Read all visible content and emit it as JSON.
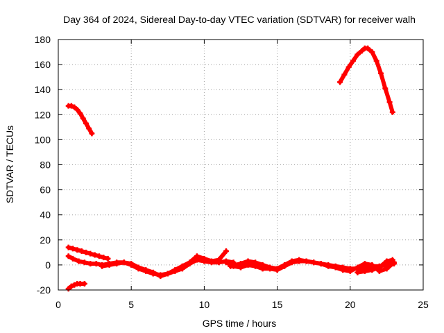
{
  "chart_data": {
    "type": "scatter",
    "title": "Day 364 of 2024, Sidereal Day-to-day VTEC variation (SDTVAR) for receiver walh",
    "xlabel": "GPS time / hours",
    "ylabel": "SDTVAR / TECUs",
    "xlim": [
      0,
      25
    ],
    "ylim": [
      -20,
      180
    ],
    "xticks": [
      "0",
      "5",
      "10",
      "15",
      "20",
      "25"
    ],
    "yticks": [
      "-20",
      "0",
      "20",
      "40",
      "60",
      "80",
      "100",
      "120",
      "140",
      "160",
      "180"
    ],
    "grid": true,
    "marker": "plus",
    "series": [
      {
        "name": "early-high",
        "color": "#ff0000",
        "x": [
          0.7,
          0.9,
          1.1,
          1.3,
          1.5,
          1.7,
          1.9,
          2.1,
          2.3
        ],
        "y": [
          127,
          127,
          126,
          124,
          121,
          117,
          113,
          109,
          105
        ]
      },
      {
        "name": "late-high",
        "color": "#ff0000",
        "x": [
          19.3,
          19.6,
          19.9,
          20.2,
          20.5,
          20.8,
          21.0,
          21.2,
          21.5,
          21.8,
          22.1,
          22.4,
          22.7,
          22.9
        ],
        "y": [
          146,
          152,
          158,
          163,
          168,
          171,
          173,
          173,
          170,
          163,
          153,
          141,
          130,
          122
        ]
      },
      {
        "name": "arc-upper-start",
        "color": "#ff0000",
        "x": [
          0.7,
          1.0,
          1.3,
          1.6,
          1.9,
          2.2,
          2.5,
          2.8,
          3.1,
          3.4
        ],
        "y": [
          14,
          13,
          12,
          11,
          10,
          9,
          8,
          7,
          6,
          5
        ]
      },
      {
        "name": "arc-lower-start",
        "color": "#ff0000",
        "x": [
          0.7,
          0.9,
          1.1,
          1.3,
          1.5,
          1.8
        ],
        "y": [
          -19,
          -17,
          -16,
          -15,
          -15,
          -15
        ]
      },
      {
        "name": "main-band-a",
        "color": "#ff0000",
        "x": [
          0.7,
          1.0,
          1.4,
          1.8,
          2.2,
          2.6,
          3.0,
          3.5,
          4.0,
          4.5,
          5.0,
          5.5,
          6.0,
          6.5,
          7.0,
          7.5,
          8.0,
          8.5,
          9.0,
          9.5,
          10.0,
          10.5,
          11.0,
          11.5,
          12.0
        ],
        "y": [
          7,
          5,
          3,
          2,
          1,
          1,
          0,
          1,
          2,
          2,
          0,
          -3,
          -5,
          -7,
          -8,
          -7,
          -5,
          -3,
          1,
          4,
          3,
          2,
          2,
          3,
          2
        ]
      },
      {
        "name": "main-band-b",
        "color": "#ff0000",
        "x": [
          3.0,
          3.5,
          4.0,
          4.5,
          5.0,
          5.5,
          6.0,
          6.5,
          7.0,
          7.5,
          8.0,
          8.5,
          9.0,
          9.5,
          10.0,
          10.5,
          11.0,
          11.5
        ],
        "y": [
          -1,
          0,
          1,
          2,
          1,
          -2,
          -4,
          -6,
          -9,
          -7,
          -4,
          -1,
          2,
          7,
          5,
          3,
          4,
          11
        ]
      },
      {
        "name": "main-band-c",
        "color": "#ff0000",
        "x": [
          11.5,
          12.0,
          12.5,
          13.0,
          13.5,
          14.0,
          14.5,
          15.0,
          15.5,
          16.0,
          16.5,
          17.0,
          17.5,
          18.0,
          18.5,
          19.0,
          19.5,
          20.0,
          20.5,
          21.0,
          21.5,
          22.0,
          22.5,
          23.0
        ],
        "y": [
          2,
          -1,
          -2,
          0,
          -1,
          -3,
          -3,
          -4,
          -1,
          2,
          3,
          3,
          2,
          1,
          0,
          -1,
          -2,
          -3,
          -3,
          -2,
          -1,
          -1,
          0,
          1
        ]
      },
      {
        "name": "main-band-d",
        "color": "#ff0000",
        "x": [
          11.8,
          12.5,
          13.0,
          13.5,
          14.0,
          14.5,
          15.0,
          15.5,
          16.0,
          16.5,
          17.0,
          17.5,
          18.0,
          18.5,
          19.0,
          19.5,
          20.0,
          20.5,
          21.0,
          21.5,
          22.0,
          22.5,
          23.0
        ],
        "y": [
          -1,
          1,
          3,
          2,
          0,
          -2,
          -3,
          0,
          3,
          4,
          3,
          2,
          1,
          -1,
          -2,
          -4,
          -5,
          -2,
          1,
          0,
          -5,
          -3,
          2
        ]
      },
      {
        "name": "late-low",
        "color": "#ff0000",
        "x": [
          20.5,
          21.0,
          21.5,
          22.0,
          22.5,
          22.9
        ],
        "y": [
          -6,
          -5,
          -4,
          -2,
          3,
          4
        ]
      }
    ]
  }
}
